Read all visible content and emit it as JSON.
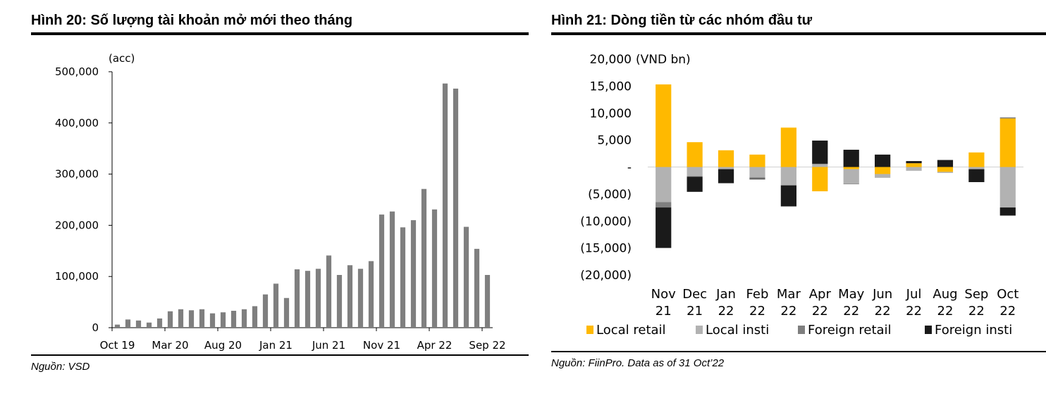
{
  "figures": [
    {
      "title": "Hình 20: Số lượng tài khoản mở mới theo tháng",
      "source": "Nguồn: VSD"
    },
    {
      "title": "Hình 21: Dòng tiền từ các nhóm đầu tư",
      "source": "Nguồn: FiinPro. Data as of 31 Oct’22"
    }
  ],
  "chart_data": [
    {
      "type": "bar",
      "title": "Hình 20: Số lượng tài khoản mở mới theo tháng",
      "unit_label": "(acc)",
      "ylim": [
        0,
        500000
      ],
      "yticks": [
        0,
        100000,
        200000,
        300000,
        400000,
        500000
      ],
      "ytick_labels": [
        "0",
        "100,000",
        "200,000",
        "300,000",
        "400,000",
        "500,000"
      ],
      "xtick_labels": [
        "Oct 19",
        "Mar 20",
        "Aug 20",
        "Jan 21",
        "Jun 21",
        "Nov 21",
        "Apr 22",
        "Sep 22"
      ],
      "xtick_every": 5,
      "categories": [
        "Oct 19",
        "Nov 19",
        "Dec 19",
        "Jan 20",
        "Feb 20",
        "Mar 20",
        "Apr 20",
        "May 20",
        "Jun 20",
        "Jul 20",
        "Aug 20",
        "Sep 20",
        "Oct 20",
        "Nov 20",
        "Dec 20",
        "Jan 21",
        "Feb 21",
        "Mar 21",
        "Apr 21",
        "May 21",
        "Jun 21",
        "Jul 21",
        "Aug 21",
        "Sep 21",
        "Oct 21",
        "Nov 21",
        "Dec 21",
        "Jan 22",
        "Feb 22",
        "Mar 22",
        "Apr 22",
        "May 22",
        "Jun 22",
        "Jul 22",
        "Aug 22",
        "Sep 22"
      ],
      "values": [
        6000,
        16000,
        14000,
        10000,
        18000,
        32000,
        36000,
        34000,
        36000,
        28000,
        30000,
        33000,
        36000,
        42000,
        65000,
        86000,
        58000,
        114000,
        111000,
        115000,
        141000,
        103000,
        122000,
        115000,
        130000,
        221000,
        227000,
        196000,
        210000,
        271000,
        231000,
        477000,
        467000,
        197000,
        154000,
        103000
      ],
      "grid": false,
      "color": "#7f7f7f"
    },
    {
      "type": "bar",
      "stacked": true,
      "title": "Hình 21: Dòng tiền từ các nhóm đầu tư",
      "unit_label": "(VND bn)",
      "ylim": [
        -20000,
        20000
      ],
      "yticks": [
        20000,
        15000,
        10000,
        5000,
        0,
        -5000,
        -10000,
        -15000,
        -20000
      ],
      "ytick_labels": [
        "20,000",
        "15,000",
        "10,000",
        "5,000",
        "-",
        "(5,000)",
        "(10,000)",
        "(15,000)",
        "(20,000)"
      ],
      "categories": [
        [
          "Nov",
          "21"
        ],
        [
          "Dec",
          "21"
        ],
        [
          "Jan",
          "22"
        ],
        [
          "Feb",
          "22"
        ],
        [
          "Mar",
          "22"
        ],
        [
          "Apr",
          "22"
        ],
        [
          "May",
          "22"
        ],
        [
          "Jun",
          "22"
        ],
        [
          "Jul",
          "22"
        ],
        [
          "Aug",
          "22"
        ],
        [
          "Sep",
          "22"
        ],
        [
          "Oct",
          "22"
        ]
      ],
      "series": [
        {
          "name": "Local retail",
          "color": "#ffb900",
          "values": [
            15300,
            4600,
            3100,
            2300,
            7300,
            -4500,
            -400,
            -1300,
            700,
            -900,
            2700,
            9000
          ]
        },
        {
          "name": "Local insti",
          "color": "#b2b2b2",
          "values": [
            -6500,
            -1700,
            -400,
            -1900,
            -3400,
            500,
            -2700,
            -700,
            -700,
            -200,
            -400,
            -7500
          ]
        },
        {
          "name": "Foreign retail",
          "color": "#7f7f7f",
          "values": [
            -1000,
            -100,
            0,
            -300,
            0,
            100,
            -100,
            0,
            0,
            0,
            0,
            200
          ]
        },
        {
          "name": "Foreign insti",
          "color": "#1a1a1a",
          "values": [
            -7500,
            -2800,
            -2600,
            -100,
            -3900,
            4300,
            3200,
            2300,
            400,
            1300,
            -2400,
            -1500
          ]
        }
      ],
      "legend": "bottom",
      "grid": false
    }
  ]
}
